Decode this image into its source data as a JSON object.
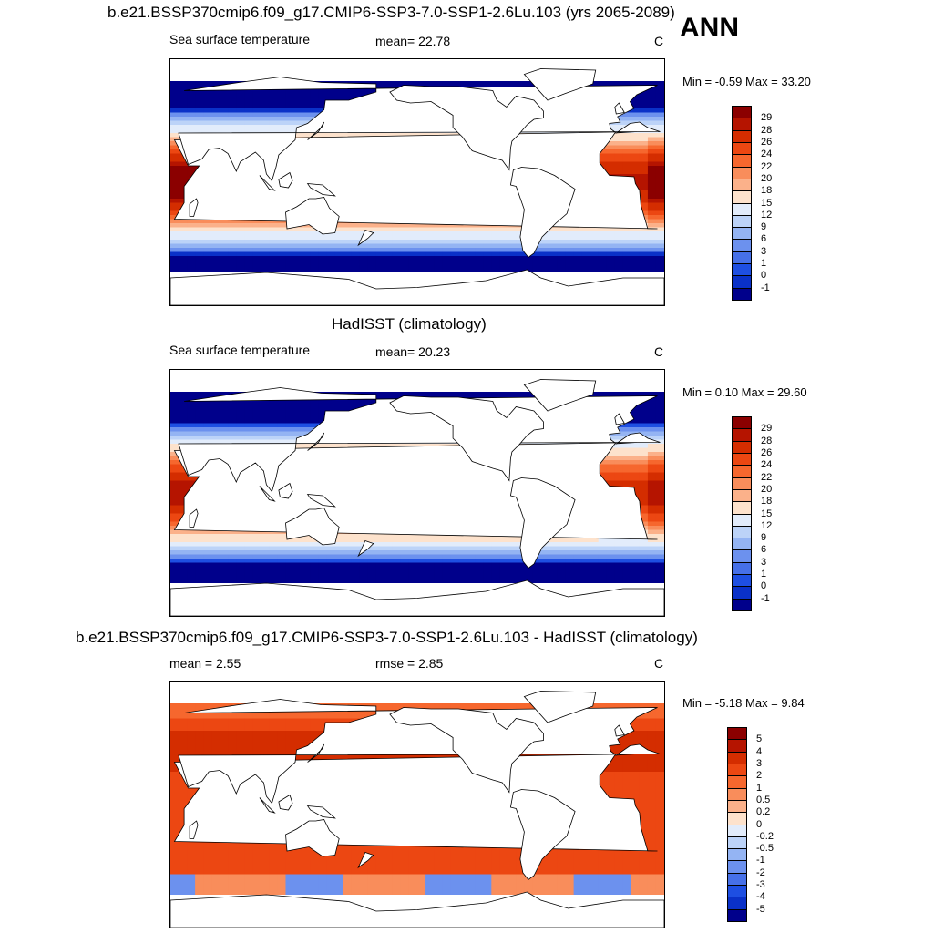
{
  "annotation": "ANN",
  "panels": [
    {
      "title": "b.e21.BSSP370cmip6.f09_g17.CMIP6-SSP3-7.0-SSP1-2.6Lu.103 (yrs 2065-2089)",
      "left_label": "Sea surface temperature",
      "center_label": "mean=  22.78",
      "unit": "C",
      "minmax": "Min =  -0.59 Max =  33.20",
      "kind": "abs",
      "scale": 1.0
    },
    {
      "title": "HadISST (climatology)",
      "left_label": "Sea surface temperature",
      "center_label": "mean=  20.23",
      "unit": "C",
      "minmax": "Min =   0.10 Max =  29.60",
      "kind": "abs",
      "scale": 0.86
    },
    {
      "title": "b.e21.BSSP370cmip6.f09_g17.CMIP6-SSP3-7.0-SSP1-2.6Lu.103 - HadISST (climatology)",
      "left_label": "mean =   2.55",
      "center_label": "rmse =   2.85",
      "unit": "C",
      "minmax": "Min =  -5.18 Max =   9.84",
      "kind": "diff",
      "scale": 1.0
    }
  ],
  "chart_data": [
    {
      "type": "heatmap",
      "title": "b.e21.BSSP370cmip6.f09_g17.CMIP6-SSP3-7.0-SSP1-2.6Lu.103 (yrs 2065-2089)",
      "variable": "Sea surface temperature",
      "units": "C",
      "mean": 22.78,
      "min": -0.59,
      "max": 33.2,
      "colorbar_levels": [
        -1,
        0,
        1,
        3,
        6,
        9,
        12,
        15,
        18,
        20,
        22,
        24,
        26,
        28,
        29
      ]
    },
    {
      "type": "heatmap",
      "title": "HadISST (climatology)",
      "variable": "Sea surface temperature",
      "units": "C",
      "mean": 20.23,
      "min": 0.1,
      "max": 29.6,
      "colorbar_levels": [
        -1,
        0,
        1,
        3,
        6,
        9,
        12,
        15,
        18,
        20,
        22,
        24,
        26,
        28,
        29
      ]
    },
    {
      "type": "heatmap",
      "title": "b.e21.BSSP370cmip6.f09_g17.CMIP6-SSP3-7.0-SSP1-2.6Lu.103 - HadISST (climatology)",
      "units": "C",
      "mean": 2.55,
      "rmse": 2.85,
      "min": -5.18,
      "max": 9.84,
      "colorbar_levels": [
        -5,
        -4,
        -3,
        -2,
        -1,
        -0.5,
        -0.2,
        0,
        0.2,
        0.5,
        1,
        2,
        3,
        4,
        5
      ]
    }
  ],
  "colorbars": {
    "abs": {
      "labels": [
        "29",
        "28",
        "26",
        "24",
        "22",
        "20",
        "18",
        "15",
        "12",
        "9",
        "6",
        "3",
        "1",
        "0",
        "-1"
      ],
      "colors": [
        "#8b0000",
        "#b51400",
        "#d42d00",
        "#ec4712",
        "#f6672e",
        "#f98d5b",
        "#fbb18a",
        "#fde2cc",
        "#e2ecfb",
        "#bcd3f8",
        "#94b4f3",
        "#6c91ee",
        "#4670e8",
        "#1e4fe2",
        "#0a31c8",
        "#00008b"
      ]
    },
    "diff": {
      "labels": [
        "5",
        "4",
        "3",
        "2",
        "1",
        "0.5",
        "0.2",
        "0",
        "-0.2",
        "-0.5",
        "-1",
        "-2",
        "-3",
        "-4",
        "-5"
      ],
      "colors": [
        "#8b0000",
        "#b51400",
        "#d42d00",
        "#ec4712",
        "#f6672e",
        "#f98d5b",
        "#fbb18a",
        "#fde2cc",
        "#e2ecfb",
        "#bcd3f8",
        "#94b4f3",
        "#6c91ee",
        "#4670e8",
        "#1e4fe2",
        "#0a31c8",
        "#00008b"
      ]
    }
  }
}
